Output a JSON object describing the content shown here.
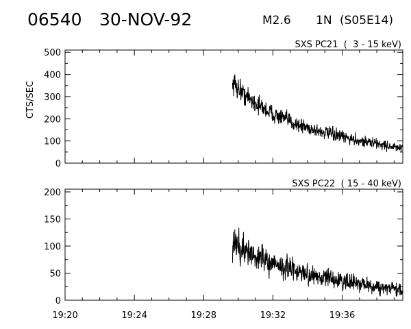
{
  "header": {
    "event_number": "06540",
    "date": "30-NOV-92",
    "goes_class": "M2.6",
    "optical_class": "1N",
    "location": "(S05E14)"
  },
  "chart_data": [
    {
      "type": "line",
      "title": "SXS PC21  (  3 - 15 keV)",
      "xlabel": "",
      "ylabel": "CTS/SEC",
      "xlim": [
        "19:20",
        "19:39:30"
      ],
      "ylim": [
        0,
        510
      ],
      "yticks": [
        0,
        100,
        200,
        300,
        400,
        500
      ],
      "grid": false,
      "series": [
        {
          "x": [
            "19:29:40",
            "19:30:00",
            "19:30:30",
            "19:31:00",
            "19:31:30",
            "19:32:00",
            "19:32:30",
            "19:33:00",
            "19:33:30",
            "19:34:00",
            "19:34:30",
            "19:35:00",
            "19:35:30",
            "19:36:00",
            "19:36:30",
            "19:37:00",
            "19:37:30",
            "19:38:00",
            "19:38:30",
            "19:39:00",
            "19:39:30"
          ],
          "values": [
            355,
            330,
            300,
            270,
            245,
            222,
            205,
            188,
            172,
            160,
            148,
            138,
            128,
            118,
            110,
            102,
            95,
            88,
            80,
            72,
            65
          ]
        }
      ]
    },
    {
      "type": "line",
      "title": "SXS PC22  ( 15 - 40 keV)",
      "xlabel": "",
      "ylabel": "",
      "xlim": [
        "19:20",
        "19:39:30"
      ],
      "ylim": [
        0,
        205
      ],
      "yticks": [
        0,
        50,
        100,
        150,
        200
      ],
      "xticks": [
        "19:20",
        "19:24",
        "19:28",
        "19:32",
        "19:36"
      ],
      "grid": false,
      "series": [
        {
          "x": [
            "19:29:40",
            "19:30:00",
            "19:30:30",
            "19:31:00",
            "19:31:30",
            "19:32:00",
            "19:32:30",
            "19:33:00",
            "19:33:30",
            "19:34:00",
            "19:34:30",
            "19:35:00",
            "19:35:30",
            "19:36:00",
            "19:36:30",
            "19:37:00",
            "19:37:30",
            "19:38:00",
            "19:38:30",
            "19:39:00",
            "19:39:30"
          ],
          "values": [
            105,
            98,
            90,
            82,
            75,
            68,
            62,
            57,
            52,
            48,
            44,
            41,
            38,
            35,
            32,
            30,
            28,
            25,
            23,
            21,
            18
          ]
        }
      ]
    }
  ]
}
